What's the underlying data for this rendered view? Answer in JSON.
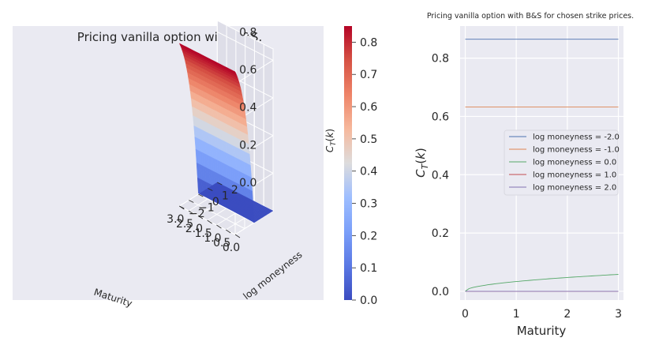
{
  "chart_data": [
    {
      "type": "surface3d",
      "title": "Pricing vanilla option with B&S.",
      "xlabel": "Maturity",
      "ylabel": "log moneyness",
      "zlabel": "$C_T(k)$",
      "x_ticks": [
        "0.0",
        "0.5",
        "1.0",
        "1.5",
        "2.0",
        "2.5",
        "3.0"
      ],
      "y_ticks": [
        "−2",
        "−1",
        "0",
        "1",
        "2"
      ],
      "z_ticks": [
        "0.0",
        "0.2",
        "0.4",
        "0.6",
        "0.8"
      ],
      "xlim": [
        0,
        3
      ],
      "ylim": [
        -2,
        2
      ],
      "zlim": [
        0,
        0.86
      ],
      "colormap": "coolwarm",
      "colorbar": {
        "ticks": [
          "0.0",
          "0.1",
          "0.2",
          "0.3",
          "0.4",
          "0.5",
          "0.6",
          "0.7",
          "0.8"
        ],
        "range": [
          0,
          0.85
        ]
      }
    },
    {
      "type": "line",
      "title": "Pricing vanilla option with B&S for chosen strike prices.",
      "xlabel": "Maturity",
      "ylabel": "$C_T(k)$",
      "x_ticks": [
        "0",
        "1",
        "2",
        "3"
      ],
      "y_ticks": [
        "0.0",
        "0.2",
        "0.4",
        "0.6",
        "0.8"
      ],
      "xlim": [
        -0.1,
        3.1
      ],
      "ylim": [
        -0.03,
        0.91
      ],
      "grid": true,
      "legend": "center-right",
      "x": [
        0,
        0.5,
        1,
        1.5,
        2,
        2.5,
        3
      ],
      "series": [
        {
          "name": "log moneyness = -2.0",
          "color": "#4c72b0",
          "values": [
            0.8647,
            0.8647,
            0.8647,
            0.8647,
            0.8647,
            0.8647,
            0.8647
          ]
        },
        {
          "name": "log moneyness = -1.0",
          "color": "#dd8452",
          "values": [
            0.6321,
            0.6321,
            0.6321,
            0.6321,
            0.6321,
            0.6321,
            0.6321
          ]
        },
        {
          "name": "log moneyness = 0.0",
          "color": "#55a868",
          "values": [
            0.0,
            0.027,
            0.038,
            0.046,
            0.051,
            0.056,
            0.058
          ]
        },
        {
          "name": "log moneyness = 1.0",
          "color": "#c44e52",
          "values": [
            0.0,
            0.0,
            0.0,
            0.0,
            0.0,
            0.0,
            0.0
          ]
        },
        {
          "name": "log moneyness = 2.0",
          "color": "#8172b3",
          "values": [
            0.0,
            0.0,
            0.0,
            0.0,
            0.0,
            0.0,
            0.0
          ]
        }
      ]
    }
  ]
}
